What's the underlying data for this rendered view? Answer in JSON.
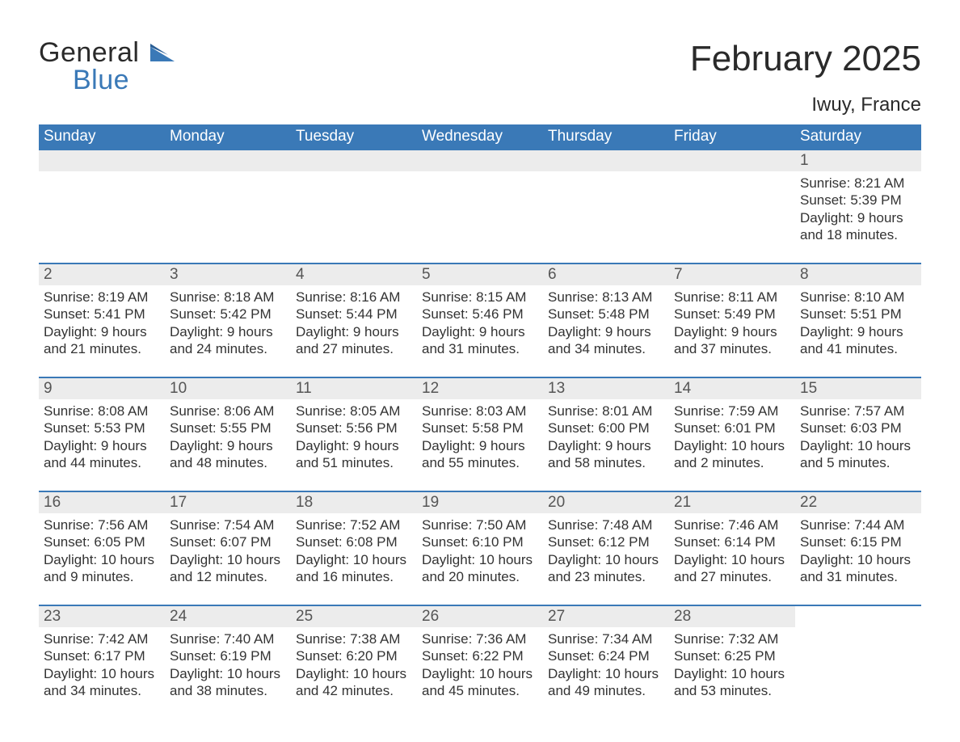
{
  "brand": {
    "word1": "General",
    "word2": "Blue"
  },
  "title": "February 2025",
  "location": "Iwuy, France",
  "colors": {
    "header_bg": "#3a79b7",
    "header_text": "#ffffff",
    "strip_bg": "#ececec",
    "rule": "#3a79b7",
    "body_text": "#333333",
    "title_text": "#2a2a2a"
  },
  "typography": {
    "title_fontsize": 44,
    "location_fontsize": 24,
    "dow_fontsize": 19,
    "daynum_fontsize": 19,
    "body_fontsize": 17
  },
  "layout": {
    "columns": 7,
    "weeks": 5,
    "first_day_column_index": 6
  },
  "days_of_week": [
    "Sunday",
    "Monday",
    "Tuesday",
    "Wednesday",
    "Thursday",
    "Friday",
    "Saturday"
  ],
  "labels": {
    "sunrise": "Sunrise",
    "sunset": "Sunset",
    "daylight": "Daylight"
  },
  "days": [
    {
      "n": 1,
      "sunrise": "8:21 AM",
      "sunset": "5:39 PM",
      "daylight": "9 hours and 18 minutes."
    },
    {
      "n": 2,
      "sunrise": "8:19 AM",
      "sunset": "5:41 PM",
      "daylight": "9 hours and 21 minutes."
    },
    {
      "n": 3,
      "sunrise": "8:18 AM",
      "sunset": "5:42 PM",
      "daylight": "9 hours and 24 minutes."
    },
    {
      "n": 4,
      "sunrise": "8:16 AM",
      "sunset": "5:44 PM",
      "daylight": "9 hours and 27 minutes."
    },
    {
      "n": 5,
      "sunrise": "8:15 AM",
      "sunset": "5:46 PM",
      "daylight": "9 hours and 31 minutes."
    },
    {
      "n": 6,
      "sunrise": "8:13 AM",
      "sunset": "5:48 PM",
      "daylight": "9 hours and 34 minutes."
    },
    {
      "n": 7,
      "sunrise": "8:11 AM",
      "sunset": "5:49 PM",
      "daylight": "9 hours and 37 minutes."
    },
    {
      "n": 8,
      "sunrise": "8:10 AM",
      "sunset": "5:51 PM",
      "daylight": "9 hours and 41 minutes."
    },
    {
      "n": 9,
      "sunrise": "8:08 AM",
      "sunset": "5:53 PM",
      "daylight": "9 hours and 44 minutes."
    },
    {
      "n": 10,
      "sunrise": "8:06 AM",
      "sunset": "5:55 PM",
      "daylight": "9 hours and 48 minutes."
    },
    {
      "n": 11,
      "sunrise": "8:05 AM",
      "sunset": "5:56 PM",
      "daylight": "9 hours and 51 minutes."
    },
    {
      "n": 12,
      "sunrise": "8:03 AM",
      "sunset": "5:58 PM",
      "daylight": "9 hours and 55 minutes."
    },
    {
      "n": 13,
      "sunrise": "8:01 AM",
      "sunset": "6:00 PM",
      "daylight": "9 hours and 58 minutes."
    },
    {
      "n": 14,
      "sunrise": "7:59 AM",
      "sunset": "6:01 PM",
      "daylight": "10 hours and 2 minutes."
    },
    {
      "n": 15,
      "sunrise": "7:57 AM",
      "sunset": "6:03 PM",
      "daylight": "10 hours and 5 minutes."
    },
    {
      "n": 16,
      "sunrise": "7:56 AM",
      "sunset": "6:05 PM",
      "daylight": "10 hours and 9 minutes."
    },
    {
      "n": 17,
      "sunrise": "7:54 AM",
      "sunset": "6:07 PM",
      "daylight": "10 hours and 12 minutes."
    },
    {
      "n": 18,
      "sunrise": "7:52 AM",
      "sunset": "6:08 PM",
      "daylight": "10 hours and 16 minutes."
    },
    {
      "n": 19,
      "sunrise": "7:50 AM",
      "sunset": "6:10 PM",
      "daylight": "10 hours and 20 minutes."
    },
    {
      "n": 20,
      "sunrise": "7:48 AM",
      "sunset": "6:12 PM",
      "daylight": "10 hours and 23 minutes."
    },
    {
      "n": 21,
      "sunrise": "7:46 AM",
      "sunset": "6:14 PM",
      "daylight": "10 hours and 27 minutes."
    },
    {
      "n": 22,
      "sunrise": "7:44 AM",
      "sunset": "6:15 PM",
      "daylight": "10 hours and 31 minutes."
    },
    {
      "n": 23,
      "sunrise": "7:42 AM",
      "sunset": "6:17 PM",
      "daylight": "10 hours and 34 minutes."
    },
    {
      "n": 24,
      "sunrise": "7:40 AM",
      "sunset": "6:19 PM",
      "daylight": "10 hours and 38 minutes."
    },
    {
      "n": 25,
      "sunrise": "7:38 AM",
      "sunset": "6:20 PM",
      "daylight": "10 hours and 42 minutes."
    },
    {
      "n": 26,
      "sunrise": "7:36 AM",
      "sunset": "6:22 PM",
      "daylight": "10 hours and 45 minutes."
    },
    {
      "n": 27,
      "sunrise": "7:34 AM",
      "sunset": "6:24 PM",
      "daylight": "10 hours and 49 minutes."
    },
    {
      "n": 28,
      "sunrise": "7:32 AM",
      "sunset": "6:25 PM",
      "daylight": "10 hours and 53 minutes."
    }
  ]
}
